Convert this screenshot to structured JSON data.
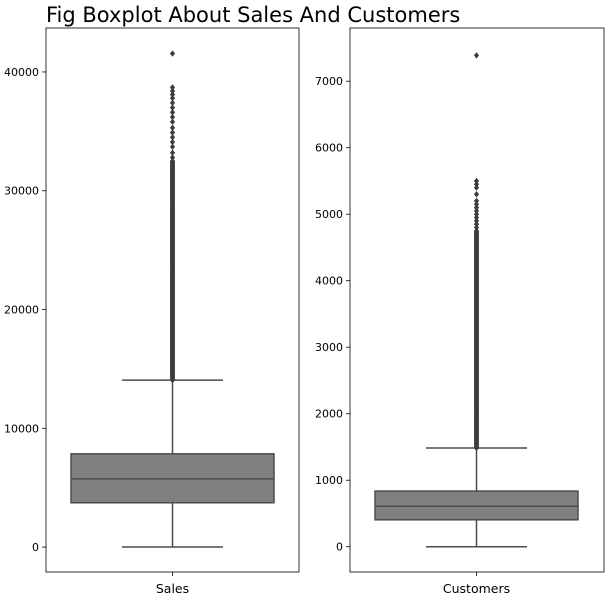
{
  "chart_data": {
    "title": "Fig Boxplot About Sales And Customers",
    "type": "box",
    "colors": {
      "box_fill": "#808080",
      "line": "#4d4d4d",
      "axes": "#000000"
    },
    "panels": [
      {
        "category": "Sales",
        "ylim": [
          -2100,
          43700
        ],
        "yticks": [
          0,
          10000,
          20000,
          30000,
          40000
        ],
        "ytick_labels": [
          "0",
          "10000",
          "20000",
          "30000",
          "40000"
        ],
        "box": {
          "whisker_low": 0,
          "q1": 3730,
          "median": 5740,
          "q3": 7850,
          "whisker_high": 14050
        },
        "outliers_dense_range": [
          14050,
          32500
        ],
        "outliers_sparse": [
          32800,
          33200,
          33700,
          34100,
          34500,
          34900,
          35300,
          35800,
          36200,
          36600,
          37000,
          37400,
          37800,
          38100,
          38400,
          38700,
          41550
        ]
      },
      {
        "category": "Customers",
        "ylim": [
          -380,
          7800
        ],
        "yticks": [
          0,
          1000,
          2000,
          3000,
          4000,
          5000,
          6000,
          7000
        ],
        "ytick_labels": [
          "0",
          "1000",
          "2000",
          "3000",
          "4000",
          "5000",
          "6000",
          "7000"
        ],
        "box": {
          "whisker_low": 0,
          "q1": 405,
          "median": 609,
          "q3": 837,
          "whisker_high": 1485
        },
        "outliers_dense_range": [
          1485,
          4750
        ],
        "outliers_sparse": [
          4800,
          4850,
          4900,
          4950,
          5000,
          5050,
          5100,
          5150,
          5200,
          5300,
          5400,
          5450,
          5500,
          7388
        ]
      }
    ]
  }
}
